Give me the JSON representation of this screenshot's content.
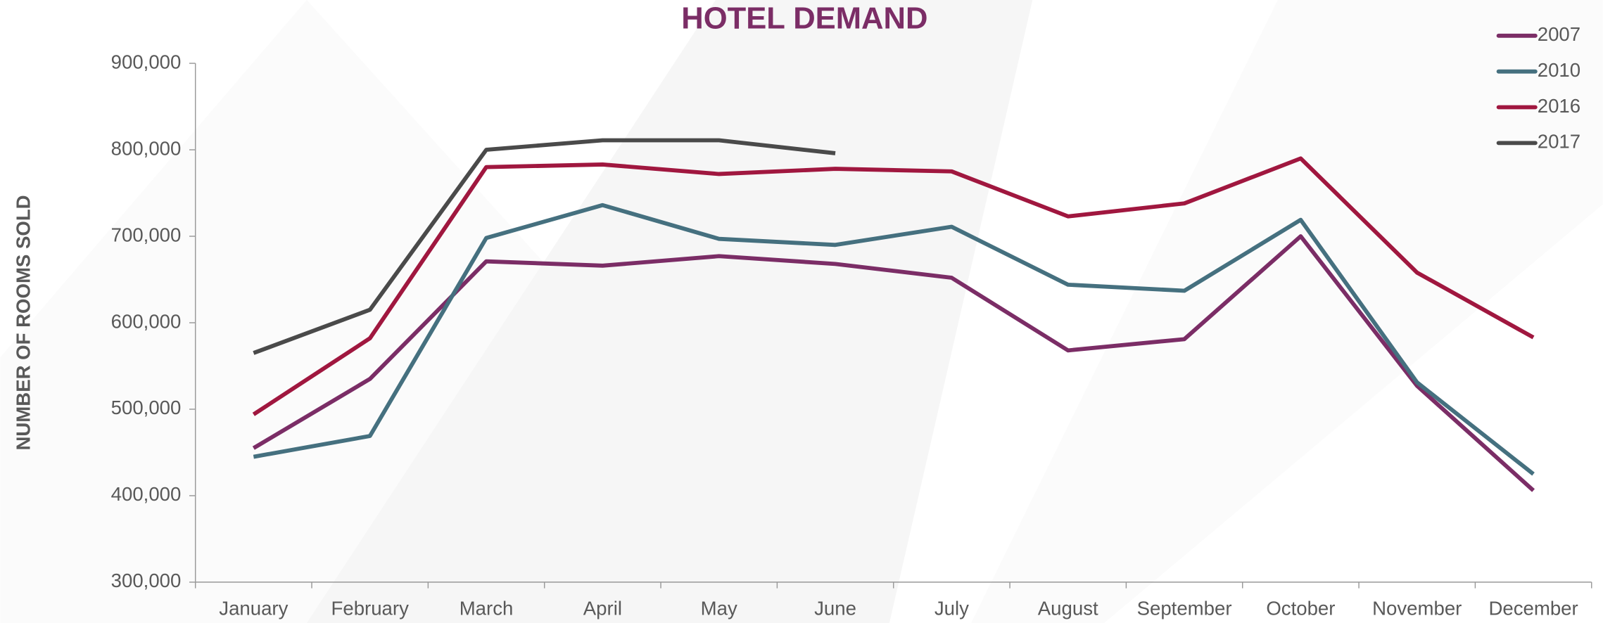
{
  "chart_data": {
    "type": "line",
    "title": "HOTEL DEMAND",
    "y_label": "NUMBER OF ROOMS SOLD",
    "categories": [
      "January",
      "February",
      "March",
      "April",
      "May",
      "June",
      "July",
      "August",
      "September",
      "October",
      "November",
      "December"
    ],
    "series": [
      {
        "name": "2007",
        "color": "#7b2d66",
        "values": [
          455000,
          535000,
          671000,
          666000,
          677000,
          668000,
          652000,
          568000,
          581000,
          700000,
          527000,
          406000
        ]
      },
      {
        "name": "2010",
        "color": "#45707f",
        "values": [
          445000,
          469000,
          698000,
          736000,
          697000,
          690000,
          711000,
          644000,
          637000,
          719000,
          531000,
          425000
        ]
      },
      {
        "name": "2016",
        "color": "#a0173f",
        "values": [
          494000,
          582000,
          780000,
          783000,
          772000,
          778000,
          775000,
          723000,
          738000,
          790000,
          658000,
          583000
        ]
      },
      {
        "name": "2017",
        "color": "#4a4a4a",
        "values": [
          565000,
          615000,
          800000,
          811000,
          811000,
          796000,
          null,
          null,
          null,
          null,
          null,
          null
        ]
      }
    ],
    "ylim": [
      300000,
      900000
    ],
    "yticks": [
      {
        "value": 300000,
        "label": "300,000"
      },
      {
        "value": 400000,
        "label": "400,000"
      },
      {
        "value": 500000,
        "label": "500,000"
      },
      {
        "value": 600000,
        "label": "600,000"
      },
      {
        "value": 700000,
        "label": "700,000"
      },
      {
        "value": 800000,
        "label": "800,000"
      },
      {
        "value": 900000,
        "label": "900,000"
      }
    ],
    "legend": "top-right",
    "grid": false
  }
}
